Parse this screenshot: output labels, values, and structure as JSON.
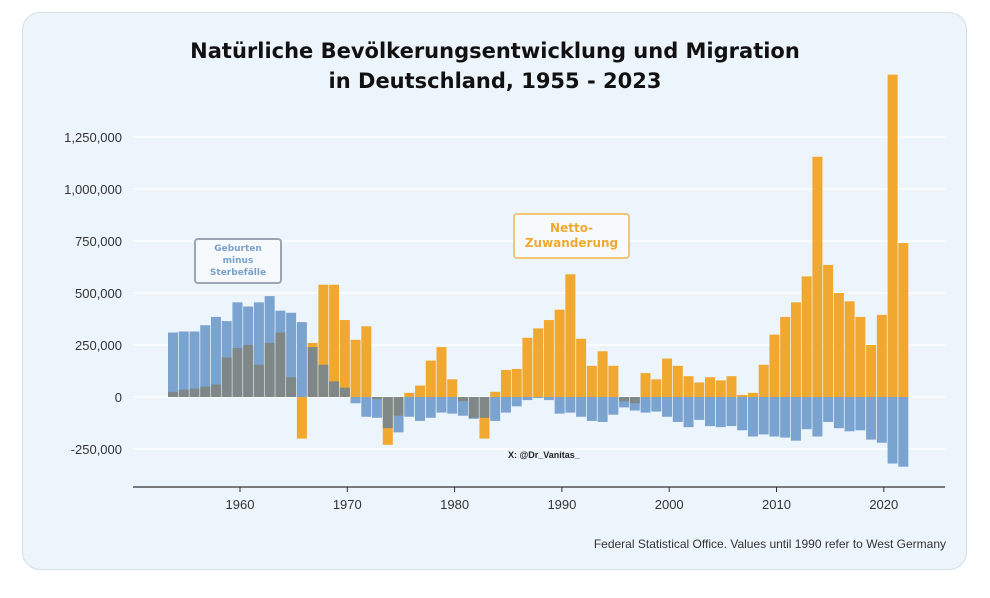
{
  "chart_data": {
    "type": "bar",
    "title": [
      "Natürliche Bevölkerungsentwicklung und Migration",
      "in Deutschland, 1955 - 2023"
    ],
    "xlabel": "",
    "ylabel": "",
    "ylim": [
      -400000,
      1600000
    ],
    "yticks": [
      -250000,
      0,
      250000,
      500000,
      750000,
      1000000,
      1250000
    ],
    "ytick_labels": [
      "-250,000",
      "0",
      "250,000",
      "500,000",
      "750,000",
      "1,000,000",
      "1,250,000"
    ],
    "xticks": [
      1960,
      1970,
      1980,
      1990,
      2000,
      2010,
      2020
    ],
    "xtick_labels": [
      "1960",
      "1970",
      "1980",
      "1990",
      "2000",
      "2010",
      "2020"
    ],
    "grid": "horizontal",
    "overlap_color": "#7f8886",
    "x": [
      1955,
      1956,
      1957,
      1958,
      1959,
      1960,
      1961,
      1962,
      1963,
      1964,
      1965,
      1966,
      1967,
      1968,
      1969,
      1970,
      1971,
      1972,
      1973,
      1974,
      1975,
      1976,
      1977,
      1978,
      1979,
      1980,
      1981,
      1982,
      1983,
      1984,
      1985,
      1986,
      1987,
      1988,
      1989,
      1990,
      1991,
      1992,
      1993,
      1994,
      1995,
      1996,
      1997,
      1998,
      1999,
      2000,
      2001,
      2002,
      2003,
      2004,
      2005,
      2006,
      2007,
      2008,
      2009,
      2010,
      2011,
      2012,
      2013,
      2014,
      2015,
      2016,
      2017,
      2018,
      2019,
      2020,
      2021,
      2022,
      2023
    ],
    "series": [
      {
        "name": "Geburten minus Sterbefälle",
        "color": "#7ba3cf",
        "values": [
          310000,
          315000,
          315000,
          345000,
          385000,
          365000,
          455000,
          435000,
          455000,
          485000,
          415000,
          405000,
          360000,
          240000,
          155000,
          75000,
          45000,
          -30000,
          -95000,
          -100000,
          -150000,
          -170000,
          -95000,
          -115000,
          -100000,
          -75000,
          -80000,
          -90000,
          -105000,
          -100000,
          -115000,
          -75000,
          -45000,
          -15000,
          -5000,
          -15000,
          -80000,
          -75000,
          -95000,
          -115000,
          -120000,
          -85000,
          -50000,
          -65000,
          -75000,
          -70000,
          -95000,
          -120000,
          -145000,
          -110000,
          -140000,
          -145000,
          -140000,
          -160000,
          -190000,
          -180000,
          -190000,
          -195000,
          -210000,
          -155000,
          -190000,
          -120000,
          -150000,
          -165000,
          -160000,
          -205000,
          -220000,
          -320000,
          -335000
        ]
      },
      {
        "name": "Netto-Zuwanderung",
        "color": "#f0a830",
        "values": [
          25000,
          35000,
          40000,
          50000,
          60000,
          190000,
          235000,
          250000,
          155000,
          260000,
          310000,
          95000,
          -200000,
          260000,
          540000,
          540000,
          370000,
          275000,
          340000,
          -10000,
          -230000,
          -90000,
          20000,
          55000,
          175000,
          240000,
          85000,
          -20000,
          -100000,
          -200000,
          25000,
          130000,
          135000,
          285000,
          330000,
          370000,
          420000,
          590000,
          280000,
          150000,
          220000,
          150000,
          -20000,
          -30000,
          115000,
          85000,
          185000,
          150000,
          100000,
          70000,
          95000,
          80000,
          100000,
          10000,
          20000,
          155000,
          300000,
          385000,
          455000,
          580000,
          1155000,
          635000,
          500000,
          460000,
          385000,
          250000,
          395000,
          1550000,
          740000
        ]
      }
    ],
    "annotations": [
      "X: @Dr_Vanitas_"
    ],
    "source": "Federal Statistical Office. Values until 1990 refer to West Germany"
  },
  "legend_boxes": {
    "natural": [
      "Geburten",
      "minus",
      "Sterbefälle"
    ],
    "migration": [
      "Netto-",
      "Zuwanderung"
    ]
  }
}
